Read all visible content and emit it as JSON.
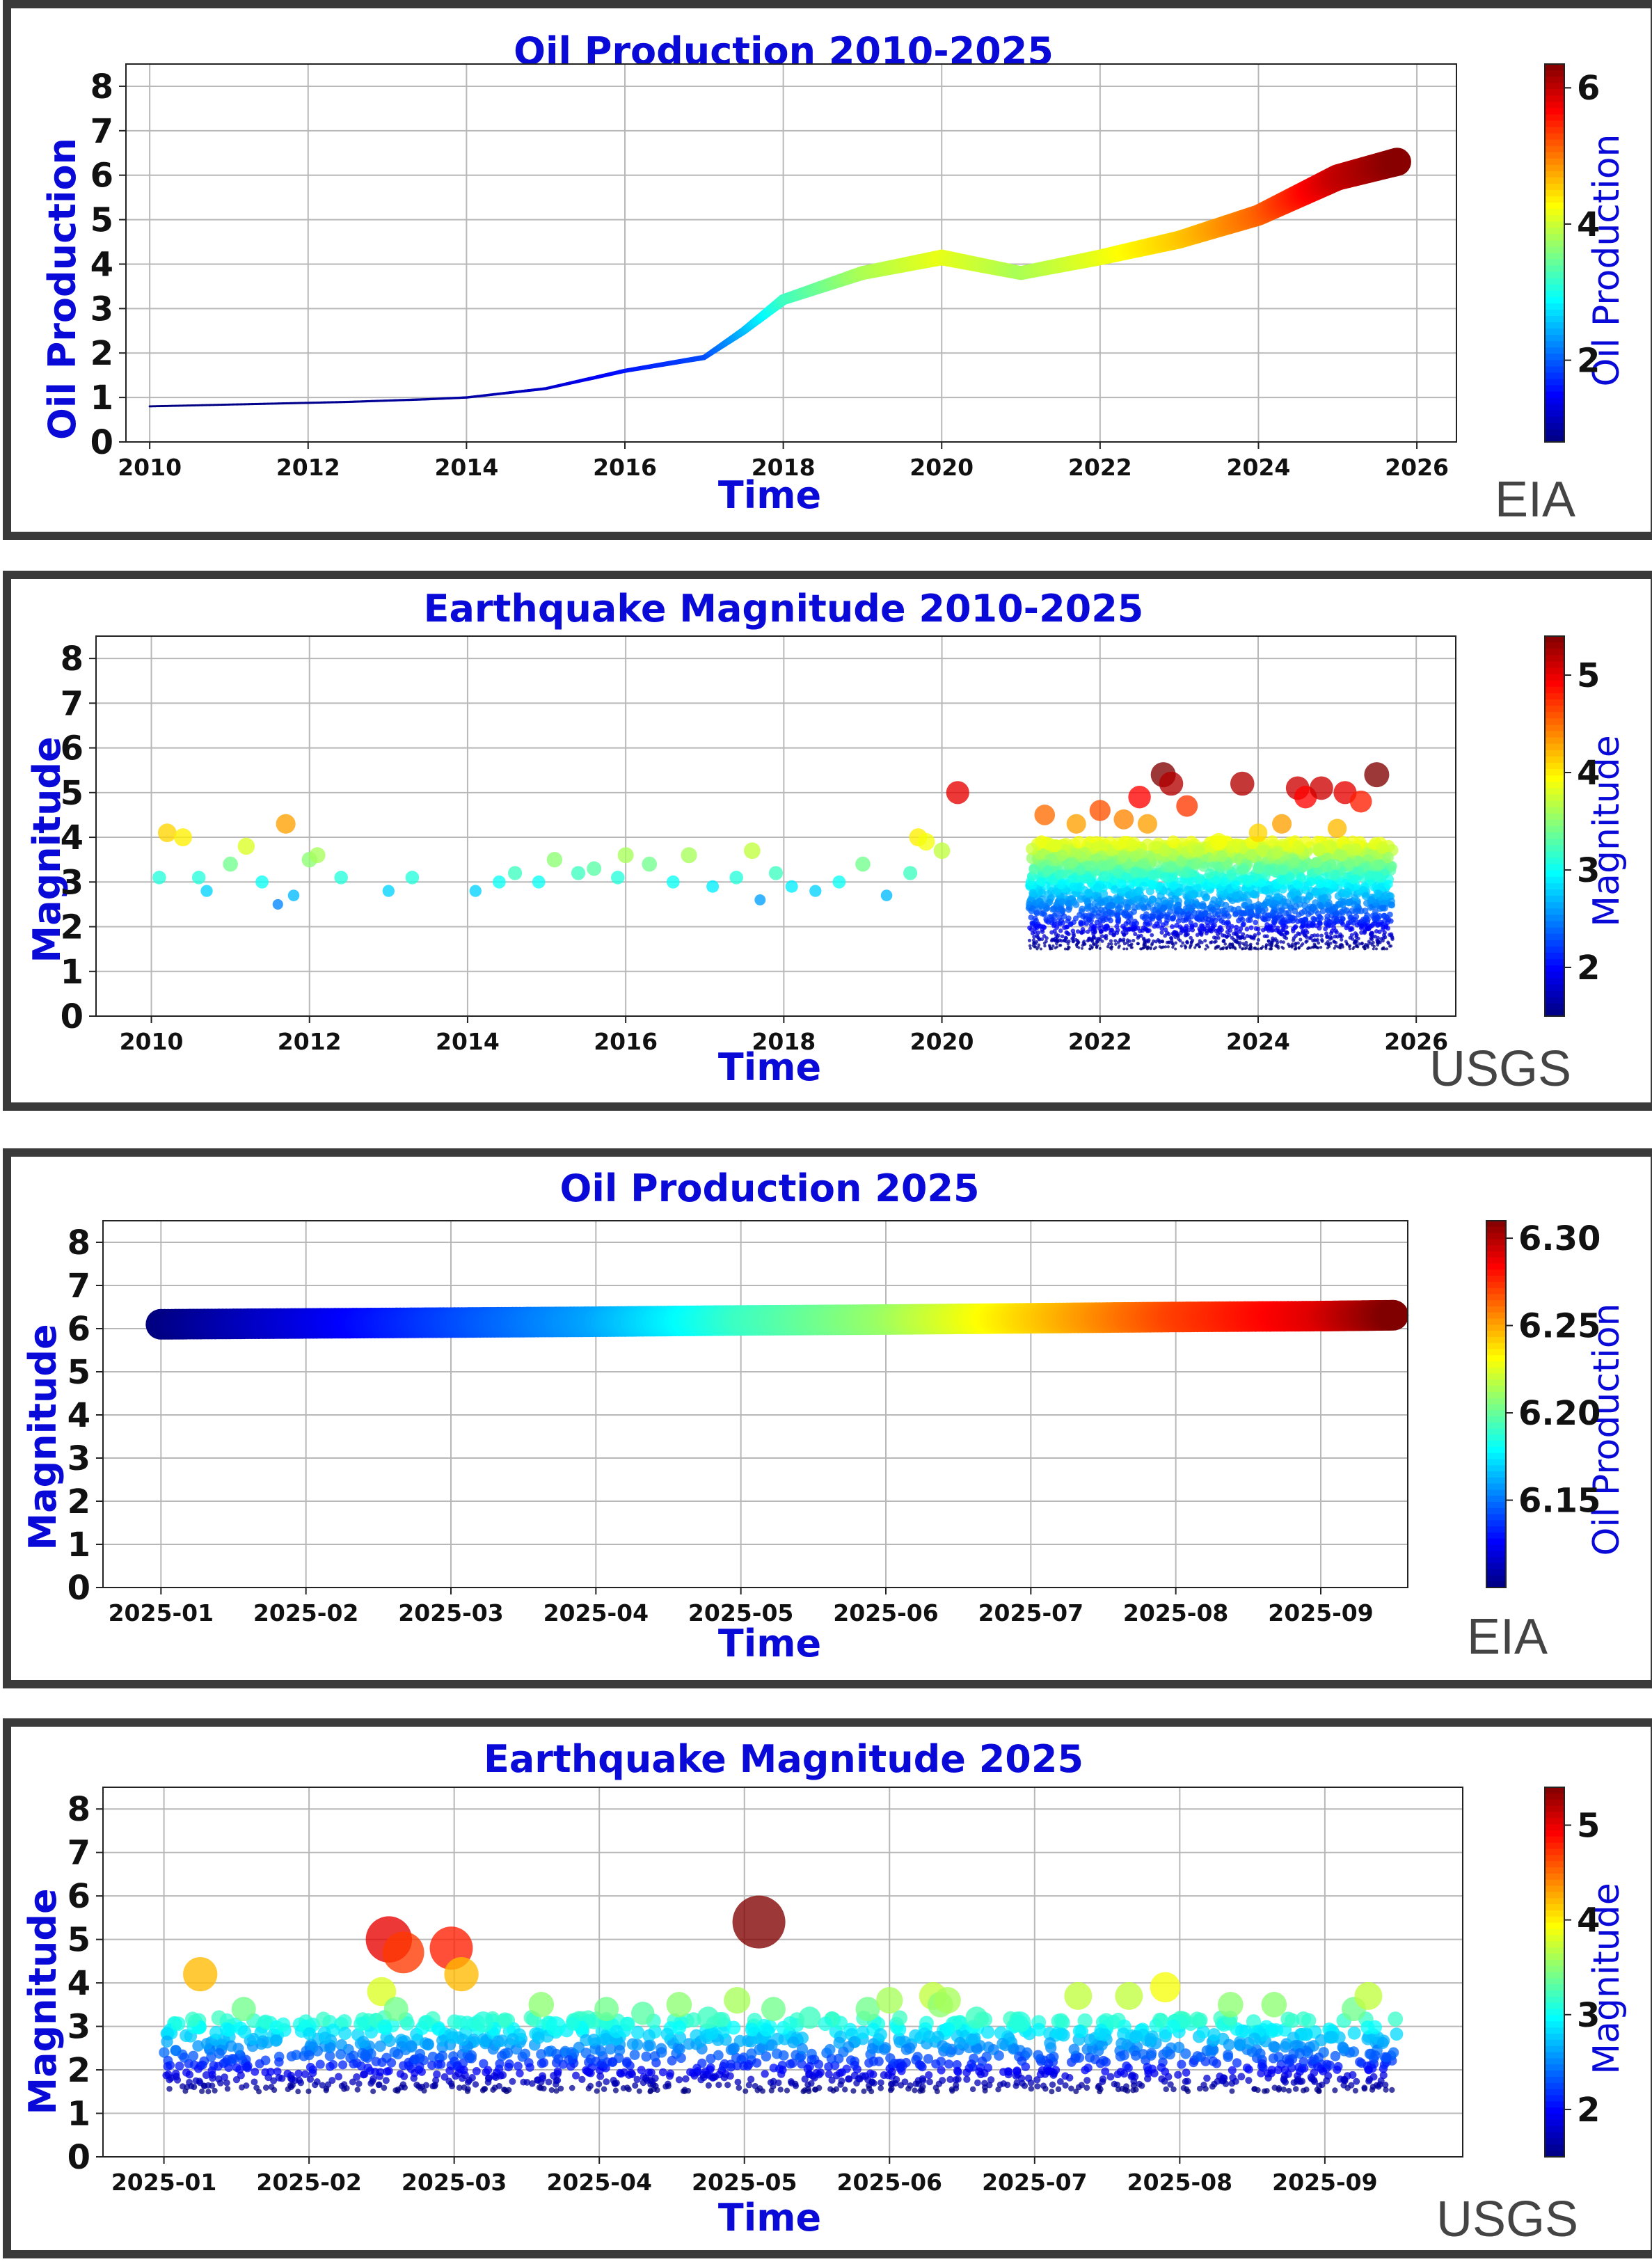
{
  "chart_data": [
    {
      "type": "line",
      "title": "Oil Production 2010-2025",
      "xlabel": "Time",
      "ylabel": "Oil Production",
      "x_axis": "year",
      "xlim": [
        2009.7,
        2026.5
      ],
      "ylim": [
        0,
        8.5
      ],
      "xticks": [
        2010,
        2012,
        2014,
        2016,
        2018,
        2020,
        2022,
        2024,
        2026
      ],
      "xtick_labels": [
        "2010",
        "2012",
        "2014",
        "2016",
        "2018",
        "2020",
        "2022",
        "2024",
        "2026"
      ],
      "yticks": [
        0,
        1,
        2,
        3,
        4,
        5,
        6,
        7,
        8
      ],
      "grid": true,
      "colorbar": {
        "label": "Oil Production",
        "min": 0.8,
        "max": 6.35,
        "ticks": [
          2,
          4,
          6
        ],
        "colormap": "jet"
      },
      "source": "EIA",
      "series": [
        {
          "x": [
            2010.0,
            2010.5,
            2011.0,
            2011.5,
            2012.0,
            2012.5,
            2013.0,
            2013.5,
            2014.0,
            2014.5,
            2015.0,
            2015.5,
            2016.0,
            2016.5,
            2017.0,
            2017.5,
            2018.0,
            2019.0,
            2020.0,
            2021.0,
            2022.0,
            2023.0,
            2024.0,
            2025.0,
            2025.75
          ],
          "y": [
            0.8,
            0.82,
            0.84,
            0.86,
            0.88,
            0.9,
            0.93,
            0.96,
            1.0,
            1.1,
            1.2,
            1.4,
            1.6,
            1.75,
            1.9,
            2.5,
            3.2,
            3.8,
            4.15,
            3.8,
            4.15,
            4.55,
            5.1,
            5.95,
            6.3
          ]
        }
      ]
    },
    {
      "type": "scatter",
      "title": "Earthquake Magnitude 2010-2025",
      "xlabel": "Time",
      "ylabel": "Magnitude",
      "x_axis": "year",
      "xlim": [
        2009.3,
        2026.5
      ],
      "ylim": [
        0,
        8.5
      ],
      "xticks": [
        2010,
        2012,
        2014,
        2016,
        2018,
        2020,
        2022,
        2024,
        2026
      ],
      "xtick_labels": [
        "2010",
        "2012",
        "2014",
        "2016",
        "2018",
        "2020",
        "2022",
        "2024",
        "2026"
      ],
      "yticks": [
        0,
        1,
        2,
        3,
        4,
        5,
        6,
        7,
        8
      ],
      "grid": true,
      "colorbar": {
        "label": "Magnitude",
        "min": 1.5,
        "max": 5.4,
        "ticks": [
          2,
          3,
          4,
          5
        ],
        "colormap": "jet"
      },
      "source": "USGS",
      "series": [
        {
          "x": [
            2010.1,
            2010.2,
            2010.4,
            2010.6,
            2010.7,
            2011.0,
            2011.2,
            2011.4,
            2011.6,
            2011.7,
            2011.8,
            2012.0,
            2012.1,
            2012.4,
            2013.0,
            2013.3,
            2014.1,
            2014.4,
            2014.6,
            2014.9,
            2015.1,
            2015.4,
            2015.6,
            2015.9,
            2016.0,
            2016.3,
            2016.6,
            2016.8,
            2017.1,
            2017.4,
            2017.6,
            2017.7,
            2017.9,
            2018.1,
            2018.4,
            2018.7,
            2019.0,
            2019.3,
            2019.6,
            2019.7,
            2019.8,
            2020.0,
            2020.2,
            2021.3,
            2021.7,
            2022.0,
            2022.3,
            2022.5,
            2022.6,
            2022.8,
            2022.9,
            2023.1,
            2023.5,
            2023.8,
            2024.0,
            2024.3,
            2024.5,
            2024.6,
            2024.8,
            2025.0,
            2025.1,
            2025.3,
            2025.5
          ],
          "y": [
            3.1,
            4.1,
            4.0,
            3.1,
            2.8,
            3.4,
            3.8,
            3.0,
            2.5,
            4.3,
            2.7,
            3.5,
            3.6,
            3.1,
            2.8,
            3.1,
            2.8,
            3.0,
            3.2,
            3.0,
            3.5,
            3.2,
            3.3,
            3.1,
            3.6,
            3.4,
            3.0,
            3.6,
            2.9,
            3.1,
            3.7,
            2.6,
            3.2,
            2.9,
            2.8,
            3.0,
            3.4,
            2.7,
            3.2,
            4.0,
            3.9,
            3.7,
            5.0,
            4.5,
            4.3,
            4.6,
            4.4,
            4.9,
            4.3,
            5.4,
            5.2,
            4.7,
            3.9,
            5.2,
            4.1,
            4.3,
            5.1,
            4.9,
            5.1,
            4.2,
            5.0,
            4.8,
            5.4
          ]
        },
        {
          "name": "dense cloud",
          "x_range": [
            2021.1,
            2025.7
          ],
          "y_range": [
            1.5,
            3.9
          ]
        }
      ]
    },
    {
      "type": "line",
      "title": "Oil Production 2025",
      "xlabel": "Time",
      "ylabel": "Magnitude",
      "x_axis": "month",
      "xlim": [
        0.6,
        9.6
      ],
      "ylim": [
        0,
        8.5
      ],
      "xticks": [
        1,
        2,
        3,
        4,
        5,
        6,
        7,
        8,
        9
      ],
      "xtick_labels": [
        "2025-01",
        "2025-02",
        "2025-03",
        "2025-04",
        "2025-05",
        "2025-06",
        "2025-07",
        "2025-08",
        "2025-09"
      ],
      "yticks": [
        0,
        1,
        2,
        3,
        4,
        5,
        6,
        7,
        8
      ],
      "grid": true,
      "colorbar": {
        "label": "Oil Production",
        "min": 6.1,
        "max": 6.31,
        "ticks": [
          6.15,
          6.2,
          6.25,
          6.3
        ],
        "tick_labels": [
          "6.15",
          "6.20",
          "6.25",
          "6.30"
        ],
        "colormap": "jet"
      },
      "source": "EIA",
      "series": [
        {
          "x": [
            1.0,
            2.0,
            3.0,
            4.0,
            5.0,
            6.0,
            7.0,
            8.0,
            9.0,
            9.5
          ],
          "y": [
            6.1,
            6.12,
            6.14,
            6.16,
            6.19,
            6.21,
            6.24,
            6.27,
            6.29,
            6.31
          ]
        }
      ]
    },
    {
      "type": "scatter",
      "title": "Earthquake Magnitude 2025",
      "xlabel": "Time",
      "ylabel": "Magnitude",
      "x_axis": "month",
      "xlim": [
        0.58,
        9.95
      ],
      "ylim": [
        0,
        8.5
      ],
      "xticks": [
        1,
        2,
        3,
        4,
        5,
        6,
        7,
        8,
        9
      ],
      "xtick_labels": [
        "2025-01",
        "2025-02",
        "2025-03",
        "2025-04",
        "2025-05",
        "2025-06",
        "2025-07",
        "2025-08",
        "2025-09"
      ],
      "yticks": [
        0,
        1,
        2,
        3,
        4,
        5,
        6,
        7,
        8
      ],
      "grid": true,
      "colorbar": {
        "label": "Magnitude",
        "min": 1.5,
        "max": 5.4,
        "ticks": [
          2,
          3,
          4,
          5
        ],
        "colormap": "jet"
      },
      "source": "USGS",
      "series": [
        {
          "x": [
            1.25,
            1.55,
            2.5,
            2.55,
            2.6,
            2.65,
            2.98,
            3.05,
            3.2,
            3.6,
            3.7,
            4.05,
            4.3,
            4.55,
            4.75,
            4.95,
            5.1,
            5.2,
            5.45,
            5.85,
            6.0,
            6.3,
            6.35,
            6.4,
            6.6,
            6.9,
            7.3,
            7.65,
            7.9,
            8.35,
            8.65,
            9.2,
            9.3
          ],
          "y": [
            4.2,
            3.4,
            3.8,
            5.0,
            3.4,
            4.7,
            4.8,
            4.2,
            3.1,
            3.5,
            3.0,
            3.4,
            3.3,
            3.5,
            3.2,
            3.6,
            5.4,
            3.4,
            3.2,
            3.4,
            3.6,
            3.7,
            3.5,
            3.6,
            3.2,
            3.1,
            3.7,
            3.7,
            3.9,
            3.5,
            3.5,
            3.4,
            3.7
          ]
        },
        {
          "name": "dense cloud",
          "x_range": [
            1.0,
            9.5
          ],
          "y_range": [
            1.5,
            3.2
          ]
        }
      ]
    }
  ]
}
